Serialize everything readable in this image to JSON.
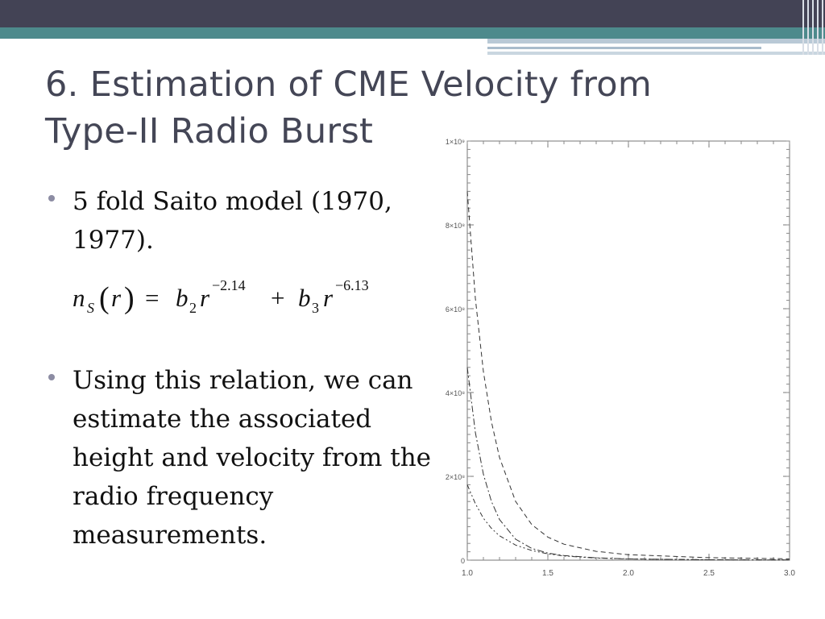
{
  "title": {
    "line1": "6. Estimation of CME Velocity from",
    "line2": "Type-II Radio Burst"
  },
  "bullets": [
    "5 fold Saito model (1970, 1977).",
    "Using this relation, we can estimate the associated height and velocity from the radio frequency measurements."
  ],
  "formula": {
    "lhs_n": "n",
    "lhs_sub": "S",
    "lhs_r": "r",
    "eq": "=",
    "b2": "b",
    "b2_sub": "2",
    "r1": "r",
    "exp1": "−2.14",
    "plus": "+",
    "b3": "b",
    "b3_sub": "3",
    "r2": "r",
    "exp2": "−6.13"
  },
  "colors": {
    "header_dark": "#434355",
    "header_teal": "#4d8a8c",
    "title_text": "#444656",
    "bullet_dot": "#8c8ca3"
  },
  "chart_data": {
    "type": "line",
    "xlim": [
      1.0,
      3.0
    ],
    "ylim": [
      0,
      1000000000.0
    ],
    "x_ticks": [
      "1.0",
      "1.5",
      "2.0",
      "2.5",
      "3.0"
    ],
    "y_ticks": [
      "0",
      "2×10⁸",
      "4×10⁸",
      "6×10⁸",
      "8×10⁸",
      "1×10⁹"
    ],
    "grid": false,
    "series": [
      {
        "style": "dashed",
        "x": [
          1.0,
          1.05,
          1.1,
          1.15,
          1.2,
          1.3,
          1.4,
          1.5,
          1.6,
          1.8,
          2.0,
          2.5,
          3.0
        ],
        "y": [
          880000000,
          625000000,
          450000000,
          330000000,
          245000000,
          140000000,
          85000000,
          55000000,
          38000000,
          21000000,
          13000000,
          6000000,
          3000000
        ]
      },
      {
        "style": "dash-dot",
        "x": [
          1.0,
          1.05,
          1.1,
          1.15,
          1.2,
          1.3,
          1.4,
          1.5,
          1.6,
          1.8,
          2.0,
          2.5,
          3.0
        ],
        "y": [
          460000000,
          305000000,
          205000000,
          140000000,
          97000000,
          50000000,
          28000000,
          17000000,
          11000000,
          5500000,
          3000000,
          1000000,
          500000
        ]
      },
      {
        "style": "dash-dot-dot",
        "x": [
          1.0,
          1.05,
          1.1,
          1.15,
          1.2,
          1.3,
          1.4,
          1.5,
          1.6,
          1.8,
          2.0,
          2.5,
          3.0
        ],
        "y": [
          180000000,
          135000000,
          100000000,
          76000000,
          58000000,
          36000000,
          23000000,
          15000000,
          10000000,
          5000000,
          2800000,
          900000,
          400000
        ]
      }
    ]
  }
}
